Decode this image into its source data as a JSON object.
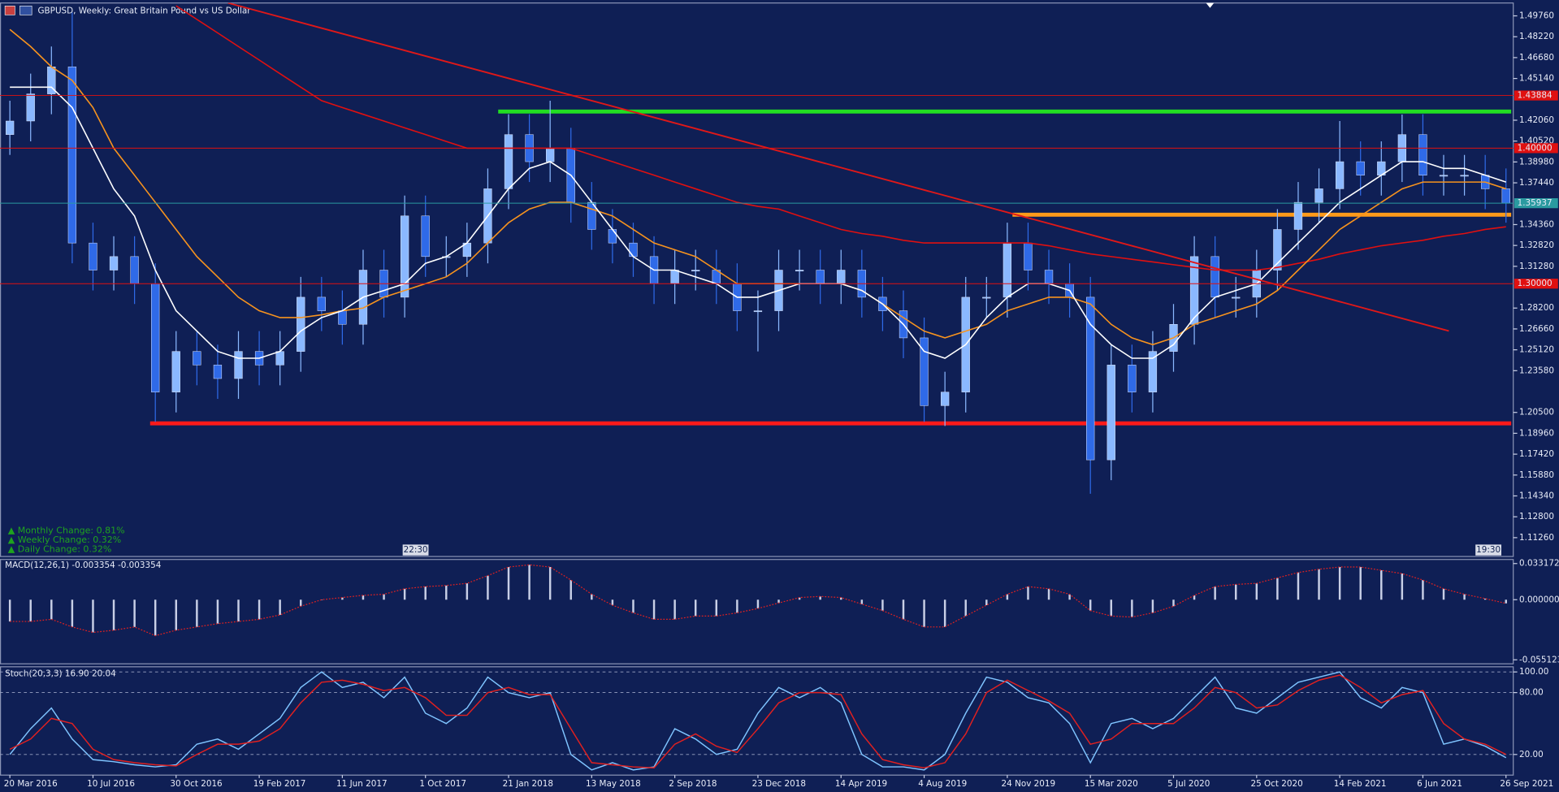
{
  "chart_data": [
    {
      "type": "candlestick",
      "title": "GBPUSD, Weekly:  Great Britain Pound vs US Dollar",
      "annotations": [
        "▲ Monthly Change: 0.81%",
        "▲ Weekly Change: 0.32%",
        "▲ Daily Change: 0.32%"
      ],
      "time_labels": [
        "22:30",
        "19:30"
      ],
      "up_color": "#8ab8ff",
      "down_color": "#2f6ae8",
      "xlim": [
        -1.9,
        289.4
      ],
      "xticks": [
        {
          "value": 0,
          "label": "20 Mar 2016"
        },
        {
          "value": 16,
          "label": "10 Jul 2016"
        },
        {
          "value": 32,
          "label": "30 Oct 2016"
        },
        {
          "value": 48,
          "label": "19 Feb 2017"
        },
        {
          "value": 64,
          "label": "11 Jun 2017"
        },
        {
          "value": 80,
          "label": "1 Oct 2017"
        },
        {
          "value": 96,
          "label": "21 Jan 2018"
        },
        {
          "value": 112,
          "label": "13 May 2018"
        },
        {
          "value": 128,
          "label": "2 Sep 2018"
        },
        {
          "value": 144,
          "label": "23 Dec 2018"
        },
        {
          "value": 160,
          "label": "14 Apr 2019"
        },
        {
          "value": 176,
          "label": "4 Aug 2019"
        },
        {
          "value": 192,
          "label": "24 Nov 2019"
        },
        {
          "value": 208,
          "label": "15 Mar 2020"
        },
        {
          "value": 224,
          "label": "5 Jul 2020"
        },
        {
          "value": 240,
          "label": "25 Oct 2020"
        },
        {
          "value": 256,
          "label": "14 Feb 2021"
        },
        {
          "value": 272,
          "label": "6 Jun 2021"
        },
        {
          "value": 288,
          "label": "26 Sep 2021"
        }
      ],
      "ylim": [
        1.0987,
        1.5071
      ],
      "yticks": [
        {
          "value": 1.4976,
          "label": "1.49760"
        },
        {
          "value": 1.4822,
          "label": "1.48220"
        },
        {
          "value": 1.4668,
          "label": "1.46680"
        },
        {
          "value": 1.4514,
          "label": "1.45140"
        },
        {
          "value": 1.4206,
          "label": "1.42060"
        },
        {
          "value": 1.4052,
          "label": "1.40520"
        },
        {
          "value": 1.3898,
          "label": "1.38980"
        },
        {
          "value": 1.3744,
          "label": "1.37440"
        },
        {
          "value": 1.3436,
          "label": "1.34360"
        },
        {
          "value": 1.3282,
          "label": "1.32820"
        },
        {
          "value": 1.3128,
          "label": "1.31280"
        },
        {
          "value": 1.282,
          "label": "1.28200"
        },
        {
          "value": 1.2666,
          "label": "1.26660"
        },
        {
          "value": 1.2512,
          "label": "1.25120"
        },
        {
          "value": 1.2358,
          "label": "1.23580"
        },
        {
          "value": 1.205,
          "label": "1.20500"
        },
        {
          "value": 1.1896,
          "label": "1.18960"
        },
        {
          "value": 1.1742,
          "label": "1.17420"
        },
        {
          "value": 1.1588,
          "label": "1.15880"
        },
        {
          "value": 1.1434,
          "label": "1.14340"
        },
        {
          "value": 1.128,
          "label": "1.12800"
        },
        {
          "value": 1.1126,
          "label": "1.11260"
        }
      ],
      "hlines": [
        {
          "value": 1.43884,
          "label": "1.43884",
          "color": "#e01010"
        },
        {
          "value": 1.4,
          "label": "1.40000",
          "color": "#e01010"
        },
        {
          "value": 1.35937,
          "label": "1.35937",
          "color": "#2a9aa0"
        },
        {
          "value": 1.3,
          "label": "1.30000",
          "color": "#e01010"
        }
      ],
      "levels": [
        {
          "x": [
            94,
            289
          ],
          "value": 1.427,
          "color": "#22dd22"
        },
        {
          "x": [
            193,
            289
          ],
          "value": 1.3509,
          "color": "#ff9a1a"
        },
        {
          "x": [
            27,
            289
          ],
          "value": 1.1969,
          "color": "#ff1a1a"
        }
      ],
      "trendlines": [
        {
          "x": [
            42,
            277
          ],
          "values": [
            1.5071,
            1.2651
          ],
          "color": "#e01818"
        }
      ],
      "x": [
        0,
        4,
        8,
        12,
        16,
        20,
        24,
        28,
        32,
        36,
        40,
        44,
        48,
        52,
        56,
        60,
        64,
        68,
        72,
        76,
        80,
        84,
        88,
        92,
        96,
        100,
        104,
        108,
        112,
        116,
        120,
        124,
        128,
        132,
        136,
        140,
        144,
        148,
        152,
        156,
        160,
        164,
        168,
        172,
        176,
        180,
        184,
        188,
        192,
        196,
        200,
        204,
        208,
        212,
        216,
        220,
        224,
        228,
        232,
        236,
        240,
        244,
        248,
        252,
        256,
        260,
        264,
        268,
        272,
        276,
        280,
        284,
        288
      ],
      "open": [
        1.41,
        1.42,
        1.44,
        1.46,
        1.33,
        1.31,
        1.32,
        1.3,
        1.22,
        1.25,
        1.24,
        1.23,
        1.25,
        1.24,
        1.25,
        1.29,
        1.28,
        1.27,
        1.31,
        1.29,
        1.35,
        1.32,
        1.32,
        1.33,
        1.37,
        1.41,
        1.39,
        1.4,
        1.36,
        1.34,
        1.33,
        1.32,
        1.3,
        1.31,
        1.31,
        1.3,
        1.28,
        1.28,
        1.31,
        1.31,
        1.3,
        1.31,
        1.29,
        1.28,
        1.26,
        1.21,
        1.22,
        1.29,
        1.29,
        1.33,
        1.31,
        1.3,
        1.29,
        1.17,
        1.24,
        1.22,
        1.25,
        1.27,
        1.32,
        1.29,
        1.29,
        1.31,
        1.34,
        1.36,
        1.37,
        1.39,
        1.38,
        1.39,
        1.41,
        1.38,
        1.38,
        1.38,
        1.37
      ],
      "high": [
        1.435,
        1.455,
        1.475,
        1.5,
        1.345,
        1.335,
        1.335,
        1.315,
        1.265,
        1.265,
        1.255,
        1.265,
        1.265,
        1.265,
        1.305,
        1.305,
        1.295,
        1.325,
        1.325,
        1.365,
        1.365,
        1.335,
        1.345,
        1.385,
        1.425,
        1.425,
        1.435,
        1.415,
        1.375,
        1.355,
        1.345,
        1.335,
        1.325,
        1.325,
        1.325,
        1.315,
        1.295,
        1.325,
        1.325,
        1.325,
        1.325,
        1.325,
        1.305,
        1.295,
        1.275,
        1.235,
        1.305,
        1.305,
        1.345,
        1.345,
        1.325,
        1.315,
        1.305,
        1.255,
        1.255,
        1.265,
        1.285,
        1.335,
        1.335,
        1.305,
        1.325,
        1.355,
        1.375,
        1.385,
        1.42,
        1.405,
        1.405,
        1.4248,
        1.425,
        1.395,
        1.395,
        1.395,
        1.385
      ],
      "low": [
        1.395,
        1.405,
        1.425,
        1.315,
        1.295,
        1.295,
        1.285,
        1.198,
        1.205,
        1.225,
        1.215,
        1.215,
        1.225,
        1.225,
        1.235,
        1.265,
        1.255,
        1.255,
        1.275,
        1.275,
        1.305,
        1.305,
        1.305,
        1.315,
        1.355,
        1.375,
        1.375,
        1.345,
        1.325,
        1.315,
        1.305,
        1.285,
        1.285,
        1.295,
        1.285,
        1.265,
        1.25,
        1.265,
        1.295,
        1.285,
        1.285,
        1.275,
        1.265,
        1.245,
        1.198,
        1.195,
        1.205,
        1.275,
        1.275,
        1.295,
        1.285,
        1.275,
        1.145,
        1.155,
        1.205,
        1.205,
        1.235,
        1.255,
        1.275,
        1.275,
        1.275,
        1.295,
        1.325,
        1.345,
        1.355,
        1.365,
        1.365,
        1.375,
        1.365,
        1.365,
        1.365,
        1.355,
        1.345
      ],
      "close": [
        1.42,
        1.44,
        1.46,
        1.33,
        1.31,
        1.32,
        1.3,
        1.22,
        1.25,
        1.24,
        1.23,
        1.25,
        1.24,
        1.25,
        1.29,
        1.28,
        1.27,
        1.31,
        1.29,
        1.35,
        1.32,
        1.32,
        1.33,
        1.37,
        1.41,
        1.39,
        1.4,
        1.36,
        1.34,
        1.33,
        1.32,
        1.3,
        1.31,
        1.31,
        1.3,
        1.28,
        1.28,
        1.31,
        1.31,
        1.3,
        1.31,
        1.29,
        1.28,
        1.26,
        1.21,
        1.22,
        1.29,
        1.29,
        1.33,
        1.31,
        1.3,
        1.29,
        1.17,
        1.24,
        1.22,
        1.25,
        1.27,
        1.32,
        1.29,
        1.29,
        1.31,
        1.34,
        1.36,
        1.37,
        1.39,
        1.38,
        1.39,
        1.41,
        1.38,
        1.38,
        1.38,
        1.37,
        1.3594
      ],
      "overlays": [
        {
          "color": "#e01010",
          "values": [
            null,
            null,
            null,
            null,
            null,
            null,
            null,
            null,
            1.505,
            1.495,
            1.485,
            1.475,
            1.465,
            1.455,
            1.445,
            1.435,
            1.43,
            1.425,
            1.42,
            1.415,
            1.41,
            1.405,
            1.4,
            1.4,
            1.4,
            1.4,
            1.4,
            1.4,
            1.395,
            1.39,
            1.385,
            1.38,
            1.375,
            1.37,
            1.365,
            1.36,
            1.357,
            1.355,
            1.35,
            1.345,
            1.34,
            1.337,
            1.335,
            1.332,
            1.33,
            1.33,
            1.33,
            1.33,
            1.33,
            1.33,
            1.328,
            1.325,
            1.322,
            1.32,
            1.318,
            1.316,
            1.314,
            1.312,
            1.31,
            1.31,
            1.31,
            1.312,
            1.315,
            1.318,
            1.322,
            1.325,
            1.328,
            1.33,
            1.332,
            1.335,
            1.337,
            1.34,
            1.342
          ]
        },
        {
          "color": "#f7931e",
          "values": [
            1.4876,
            1.475,
            1.46,
            1.45,
            1.43,
            1.4,
            1.38,
            1.36,
            1.34,
            1.32,
            1.305,
            1.29,
            1.28,
            1.275,
            1.275,
            1.277,
            1.28,
            1.282,
            1.29,
            1.295,
            1.3,
            1.305,
            1.315,
            1.33,
            1.345,
            1.355,
            1.36,
            1.36,
            1.355,
            1.35,
            1.34,
            1.33,
            1.325,
            1.32,
            1.31,
            1.3,
            1.3,
            1.3,
            1.3,
            1.3,
            1.3,
            1.295,
            1.285,
            1.275,
            1.265,
            1.26,
            1.265,
            1.27,
            1.28,
            1.285,
            1.29,
            1.29,
            1.285,
            1.27,
            1.26,
            1.255,
            1.26,
            1.27,
            1.275,
            1.28,
            1.285,
            1.295,
            1.31,
            1.325,
            1.34,
            1.35,
            1.36,
            1.37,
            1.375,
            1.375,
            1.375,
            1.375,
            1.37
          ]
        },
        {
          "color": "#ffffff",
          "values": [
            1.445,
            1.445,
            1.445,
            1.43,
            1.4,
            1.37,
            1.35,
            1.31,
            1.28,
            1.265,
            1.25,
            1.245,
            1.245,
            1.25,
            1.265,
            1.275,
            1.28,
            1.29,
            1.295,
            1.3,
            1.315,
            1.32,
            1.33,
            1.35,
            1.37,
            1.385,
            1.39,
            1.38,
            1.36,
            1.34,
            1.32,
            1.31,
            1.31,
            1.305,
            1.3,
            1.29,
            1.29,
            1.295,
            1.3,
            1.3,
            1.3,
            1.295,
            1.285,
            1.27,
            1.25,
            1.245,
            1.255,
            1.275,
            1.29,
            1.3,
            1.3,
            1.295,
            1.27,
            1.255,
            1.245,
            1.245,
            1.255,
            1.275,
            1.29,
            1.295,
            1.3,
            1.315,
            1.33,
            1.345,
            1.36,
            1.37,
            1.38,
            1.39,
            1.39,
            1.385,
            1.385,
            1.38,
            1.375
          ]
        }
      ]
    },
    {
      "type": "macd",
      "title": "MACD(12,26,1) -0.003354 -0.003354",
      "color": "#c8cfe6",
      "signal_color": "#e02020",
      "ylim": [
        -0.0588,
        0.0369
      ],
      "yticks": [
        0.033172,
        {
          "value": 0,
          "label": "0.000000"
        },
        -0.055123
      ],
      "values": [
        -0.02,
        -0.02,
        -0.018,
        -0.025,
        -0.03,
        -0.028,
        -0.025,
        -0.033,
        -0.028,
        -0.025,
        -0.022,
        -0.02,
        -0.018,
        -0.014,
        -0.006,
        0.0,
        0.002,
        0.004,
        0.005,
        0.01,
        0.012,
        0.013,
        0.015,
        0.022,
        0.03,
        0.032,
        0.03,
        0.018,
        0.005,
        -0.005,
        -0.012,
        -0.018,
        -0.018,
        -0.015,
        -0.015,
        -0.012,
        -0.008,
        -0.003,
        0.002,
        0.003,
        0.002,
        -0.004,
        -0.01,
        -0.018,
        -0.025,
        -0.025,
        -0.015,
        -0.005,
        0.005,
        0.012,
        0.01,
        0.005,
        -0.01,
        -0.015,
        -0.016,
        -0.012,
        -0.006,
        0.004,
        0.012,
        0.014,
        0.015,
        0.02,
        0.025,
        0.028,
        0.03,
        0.03,
        0.027,
        0.024,
        0.018,
        0.01,
        0.005,
        0.001,
        -0.003354
      ]
    },
    {
      "type": "line",
      "title": "Stoch(20,3,3) 16.90 20.04",
      "grid": true,
      "ylim": [
        0,
        105
      ],
      "yticks": [
        {
          "value": 100,
          "label": "100.00"
        },
        {
          "value": 80,
          "label": "80.00"
        },
        {
          "value": 20,
          "label": "20.00"
        }
      ],
      "series": [
        {
          "color": "#7fc4ff",
          "values": [
            20,
            45,
            65,
            35,
            15,
            13,
            10,
            8,
            10,
            30,
            35,
            25,
            40,
            55,
            85,
            100,
            85,
            90,
            75,
            95,
            60,
            50,
            65,
            95,
            80,
            75,
            80,
            20,
            5,
            12,
            5,
            8,
            45,
            35,
            20,
            25,
            60,
            85,
            75,
            85,
            70,
            20,
            8,
            8,
            5,
            20,
            60,
            95,
            90,
            75,
            70,
            50,
            12,
            50,
            55,
            45,
            55,
            75,
            95,
            65,
            60,
            75,
            90,
            95,
            100,
            75,
            65,
            85,
            80,
            30,
            35,
            28,
            16.9
          ]
        },
        {
          "color": "#e02020",
          "values": [
            25,
            35,
            55,
            50,
            25,
            15,
            12,
            10,
            9,
            20,
            30,
            30,
            33,
            45,
            70,
            90,
            92,
            88,
            82,
            85,
            75,
            58,
            58,
            80,
            85,
            78,
            78,
            45,
            12,
            10,
            8,
            7,
            30,
            40,
            28,
            22,
            45,
            70,
            80,
            80,
            78,
            40,
            15,
            10,
            7,
            12,
            40,
            80,
            92,
            82,
            72,
            60,
            30,
            35,
            50,
            50,
            50,
            65,
            85,
            80,
            65,
            68,
            82,
            92,
            97,
            85,
            70,
            78,
            82,
            50,
            35,
            30,
            20.04
          ]
        }
      ]
    }
  ]
}
